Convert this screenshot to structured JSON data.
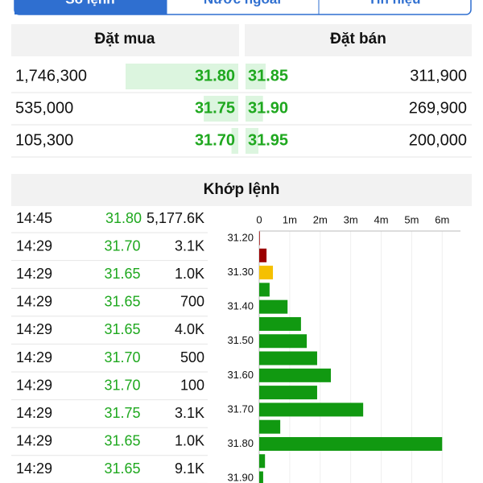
{
  "tabs": [
    "Sổ lệnh",
    "Nước ngoài",
    "Tín hiệu"
  ],
  "order_book": {
    "bid_header": "Đặt mua",
    "ask_header": "Đặt bán",
    "rows": [
      {
        "bid_volume": {
          "value": 1746300,
          "label": "1,746,300"
        },
        "bid_price": "31.80",
        "ask_price": "31.85",
        "ask_volume": {
          "value": 311900,
          "label": "311,900"
        }
      },
      {
        "bid_volume": {
          "value": 535000,
          "label": "535,000"
        },
        "bid_price": "31.75",
        "ask_price": "31.90",
        "ask_volume": {
          "value": 269900,
          "label": "269,900"
        }
      },
      {
        "bid_volume": {
          "value": 105300,
          "label": "105,300"
        },
        "bid_price": "31.70",
        "ask_price": "31.95",
        "ask_volume": {
          "value": 200000,
          "label": "200,000"
        }
      }
    ]
  },
  "matched": {
    "title": "Khớp lệnh",
    "trades": [
      {
        "time": "14:45",
        "price": "31.80",
        "volume": "5,177.6K"
      },
      {
        "time": "14:29",
        "price": "31.70",
        "volume": "3.1K"
      },
      {
        "time": "14:29",
        "price": "31.65",
        "volume": "1.0K"
      },
      {
        "time": "14:29",
        "price": "31.65",
        "volume": "700"
      },
      {
        "time": "14:29",
        "price": "31.65",
        "volume": "4.0K"
      },
      {
        "time": "14:29",
        "price": "31.70",
        "volume": "500"
      },
      {
        "time": "14:29",
        "price": "31.70",
        "volume": "100"
      },
      {
        "time": "14:29",
        "price": "31.75",
        "volume": "3.1K"
      },
      {
        "time": "14:29",
        "price": "31.65",
        "volume": "1.0K"
      },
      {
        "time": "14:29",
        "price": "31.65",
        "volume": "9.1K"
      }
    ]
  },
  "chart_data": {
    "type": "barh",
    "categories": [
      "31.20",
      null,
      "31.30",
      null,
      "31.40",
      null,
      "31.50",
      null,
      "31.60",
      null,
      "31.70",
      null,
      "31.80",
      null,
      "31.90"
    ],
    "values": [
      20000,
      240000,
      450000,
      340000,
      930000,
      1370000,
      1560000,
      1900000,
      2350000,
      1900000,
      3410000,
      690000,
      6000000,
      190000,
      130000
    ],
    "colors": [
      "#9b0000",
      "#9b0000",
      "#f5c000",
      "#119911",
      "#119911",
      "#119911",
      "#119911",
      "#119911",
      "#119911",
      "#119911",
      "#119911",
      "#119911",
      "#119911",
      "#119911",
      "#119911"
    ],
    "xlim": [
      0,
      6600000
    ],
    "xticks": [
      0,
      {
        "value": 1000000,
        "label": "1m"
      },
      {
        "value": 2000000,
        "label": "2m"
      },
      {
        "value": 3000000,
        "label": "3m"
      },
      {
        "value": 4000000,
        "label": "4m"
      },
      {
        "value": 5000000,
        "label": "5m"
      },
      {
        "value": 6000000,
        "label": "6m"
      }
    ],
    "grid": true
  }
}
